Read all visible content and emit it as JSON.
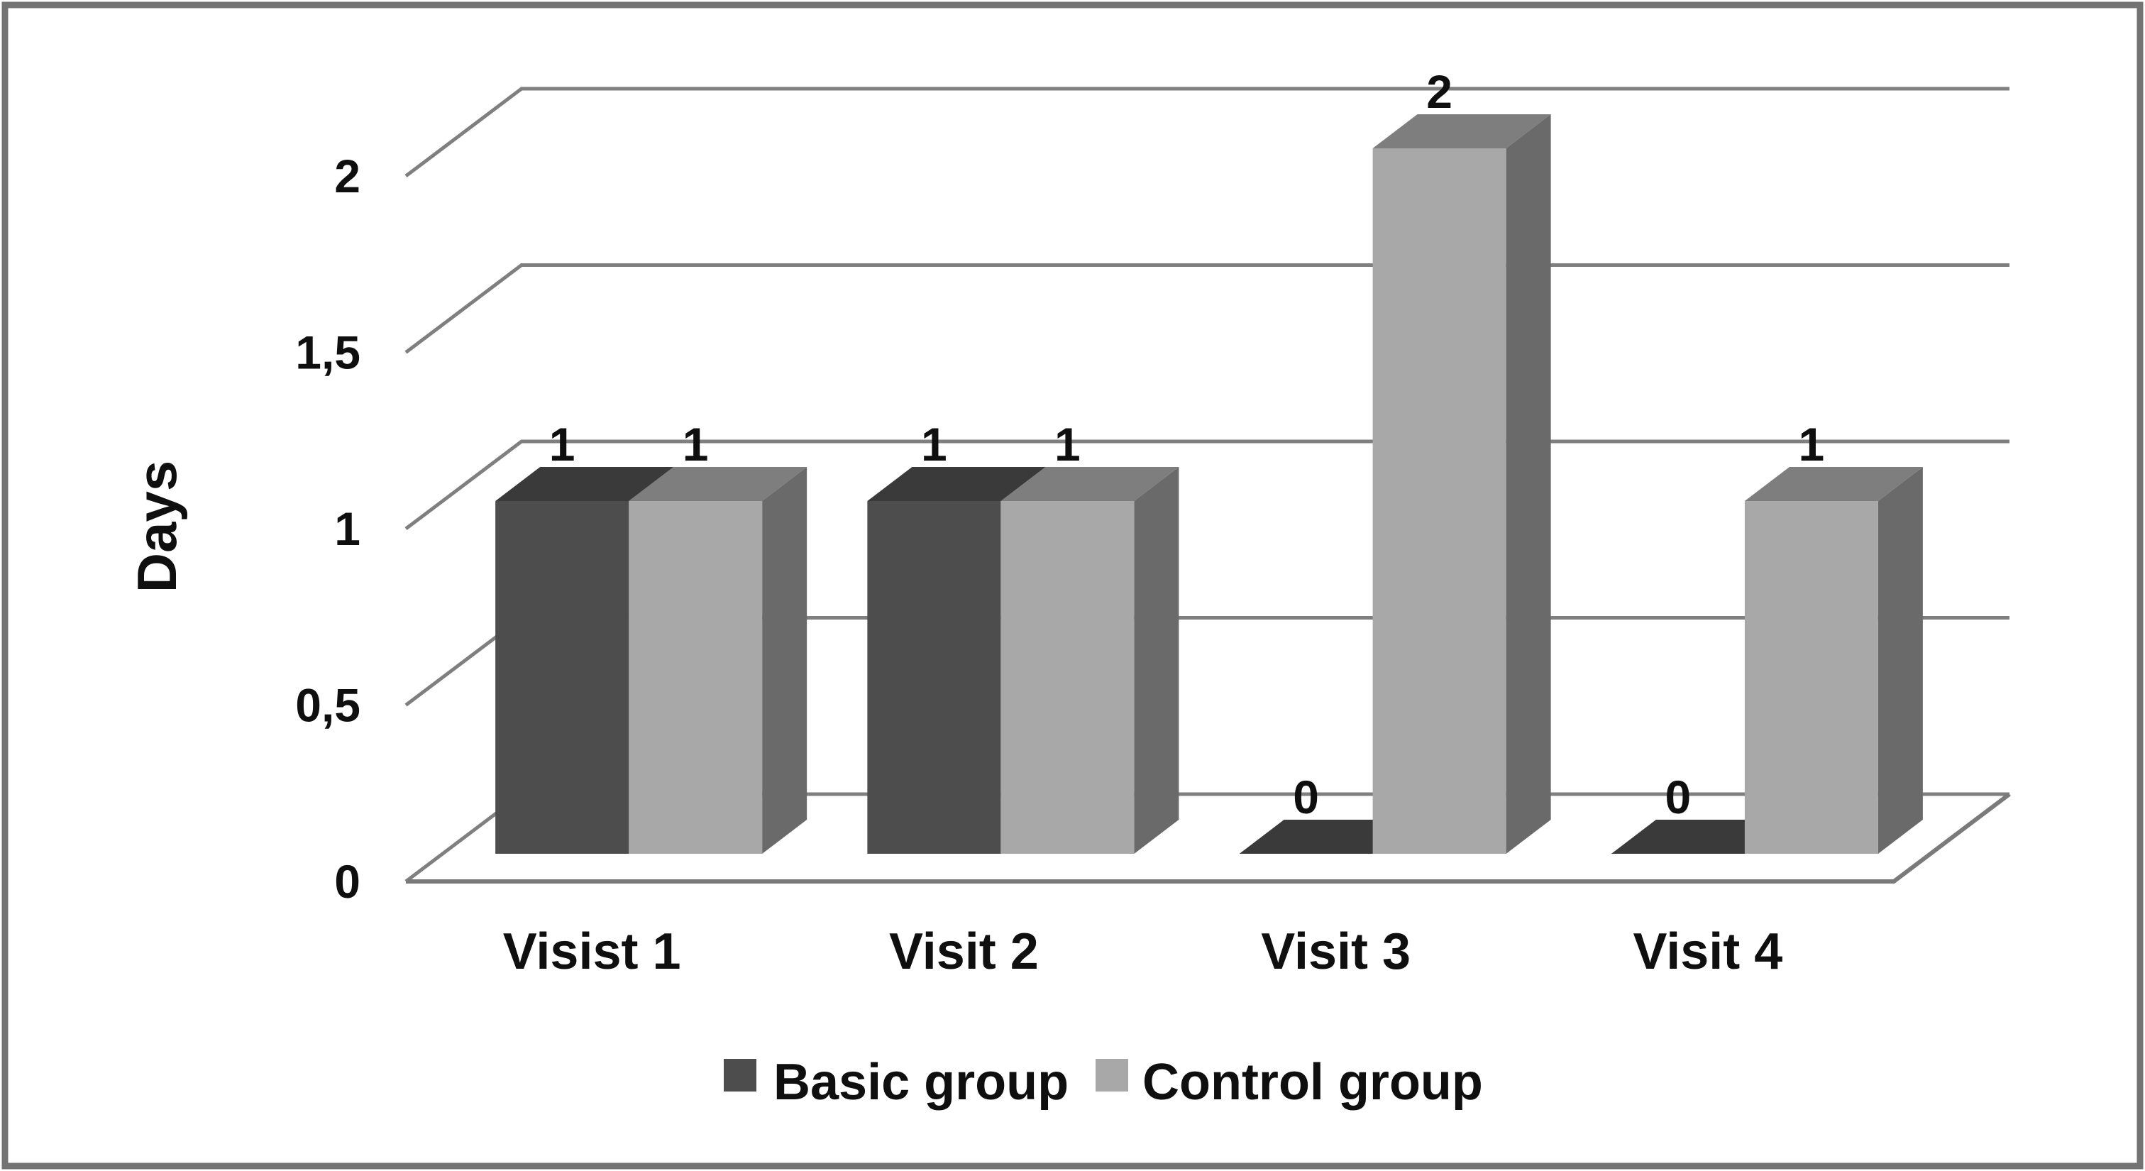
{
  "chart_data": {
    "type": "bar",
    "projection": "3d-clustered-column",
    "title": "",
    "categories": [
      "Visist 1",
      "Visit 2",
      "Visit 3",
      "Visit 4"
    ],
    "series": [
      {
        "name": "Basic group",
        "values": [
          1,
          1,
          0,
          0
        ],
        "color_front": "#4d4d4d",
        "color_top": "#3a3a3a",
        "color_side": "#2f2f2f"
      },
      {
        "name": "Control group",
        "values": [
          1,
          1,
          2,
          1
        ],
        "color_front": "#a8a8a8",
        "color_top": "#7e7e7e",
        "color_side": "#6a6a6a"
      }
    ],
    "data_labels_shown": true,
    "xlabel": "",
    "ylabel": "Days",
    "ylim": [
      0,
      2
    ],
    "yticks": [
      0,
      0.5,
      1,
      1.5,
      2
    ],
    "ytick_labels": [
      "0",
      "0,5",
      "1",
      "1,5",
      "2"
    ],
    "grid": true,
    "legend_position": "bottom"
  },
  "legend": {
    "items": [
      {
        "label": "Basic group",
        "color": "#4d4d4d"
      },
      {
        "label": "Control group",
        "color": "#a8a8a8"
      }
    ]
  },
  "colors": {
    "background": "#ffffff",
    "gridline": "#7f7f7f",
    "floor_line": "#7a7a7a",
    "frame_border": "#737373",
    "text": "#0f0f0f"
  }
}
